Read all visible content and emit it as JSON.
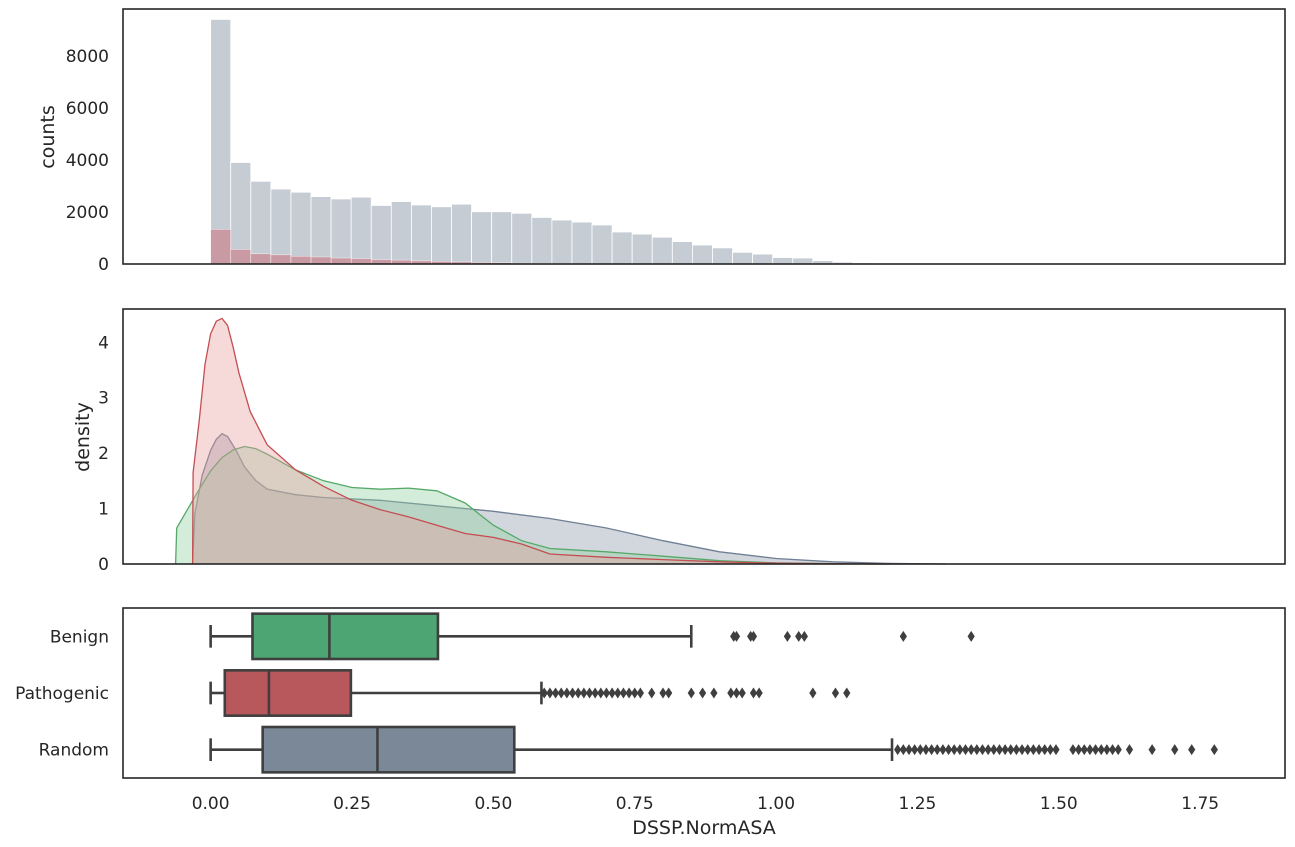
{
  "chart_data": [
    {
      "type": "bar",
      "panel": "histogram",
      "ylabel": "counts",
      "xlabel": "",
      "xlim": [
        -0.155,
        1.9
      ],
      "ylim": [
        0,
        9800
      ],
      "yticks": [
        "0",
        "2000",
        "4000",
        "6000",
        "8000"
      ],
      "bin_width": 0.0355,
      "x_start": 0.0,
      "series": [
        {
          "name": "",
          "color": "#c2c9d2",
          "values": [
            9400,
            3900,
            3180,
            2880,
            2760,
            2590,
            2500,
            2570,
            2250,
            2400,
            2270,
            2200,
            2300,
            2010,
            2010,
            1950,
            1790,
            1690,
            1610,
            1500,
            1230,
            1150,
            1030,
            860,
            730,
            620,
            450,
            380,
            250,
            230,
            130,
            70,
            40,
            20,
            10,
            5
          ]
        },
        {
          "name": "",
          "color": "#c98a93",
          "values": [
            1330,
            560,
            390,
            350,
            300,
            270,
            230,
            210,
            170,
            150,
            120,
            100,
            80,
            60,
            50,
            35,
            25,
            20,
            15,
            10,
            8,
            5
          ]
        }
      ]
    },
    {
      "type": "area",
      "panel": "density",
      "ylabel": "density",
      "xlabel": "",
      "xlim": [
        -0.155,
        1.9
      ],
      "ylim": [
        0,
        4.6
      ],
      "yticks": [
        "0",
        "1",
        "2",
        "3",
        "4"
      ],
      "series": [
        {
          "name": "",
          "category": "Random",
          "stroke": "#6f7f95",
          "fill": "#8996a8",
          "x": [
            -0.032,
            -0.028,
            -0.015,
            0.0,
            0.01,
            0.02,
            0.03,
            0.045,
            0.06,
            0.08,
            0.1,
            0.15,
            0.2,
            0.3,
            0.4,
            0.5,
            0.6,
            0.7,
            0.8,
            0.9,
            1.0,
            1.1,
            1.2,
            1.3
          ],
          "y": [
            0.0,
            0.9,
            1.6,
            2.05,
            2.25,
            2.35,
            2.3,
            2.05,
            1.75,
            1.5,
            1.35,
            1.25,
            1.2,
            1.15,
            1.05,
            0.95,
            0.82,
            0.65,
            0.42,
            0.22,
            0.1,
            0.04,
            0.01,
            0.0
          ]
        },
        {
          "name": "",
          "category": "Benign",
          "stroke": "#55a868",
          "fill": "#8fd09f",
          "x": [
            -0.062,
            -0.06,
            -0.04,
            -0.02,
            0.0,
            0.02,
            0.04,
            0.06,
            0.08,
            0.1,
            0.15,
            0.2,
            0.25,
            0.3,
            0.35,
            0.4,
            0.45,
            0.5,
            0.55,
            0.6,
            0.7,
            0.8,
            0.9,
            1.0,
            1.1,
            1.2
          ],
          "y": [
            0.0,
            0.65,
            1.0,
            1.35,
            1.68,
            1.92,
            2.06,
            2.12,
            2.08,
            1.98,
            1.7,
            1.5,
            1.38,
            1.35,
            1.37,
            1.32,
            1.1,
            0.7,
            0.42,
            0.28,
            0.22,
            0.14,
            0.06,
            0.02,
            0.005,
            0.0
          ]
        },
        {
          "name": "",
          "category": "Pathogenic",
          "stroke": "#c44e52",
          "fill": "#e79a9c",
          "x": [
            -0.032,
            -0.031,
            -0.02,
            -0.01,
            0.0,
            0.01,
            0.02,
            0.03,
            0.04,
            0.05,
            0.07,
            0.1,
            0.15,
            0.2,
            0.25,
            0.3,
            0.35,
            0.4,
            0.45,
            0.5,
            0.55,
            0.6,
            0.7,
            0.8,
            0.9,
            1.0,
            1.1,
            1.2
          ],
          "y": [
            0.0,
            1.65,
            2.6,
            3.6,
            4.15,
            4.38,
            4.43,
            4.3,
            3.9,
            3.45,
            2.75,
            2.15,
            1.7,
            1.4,
            1.15,
            0.98,
            0.85,
            0.7,
            0.55,
            0.48,
            0.36,
            0.18,
            0.12,
            0.08,
            0.04,
            0.015,
            0.005,
            0.0
          ]
        }
      ]
    },
    {
      "type": "box",
      "panel": "boxplot",
      "xlabel": "DSSP.NormASA",
      "xlim": [
        -0.155,
        1.9
      ],
      "xticks": [
        "0.00",
        "0.25",
        "0.50",
        "0.75",
        "1.00",
        "1.25",
        "1.50",
        "1.75"
      ],
      "categories": [
        "Benign",
        "Pathogenic",
        "Random"
      ],
      "boxes": [
        {
          "category": "Benign",
          "color": "#4ca572",
          "whisker_low": 0.0,
          "q1": 0.074,
          "median": 0.21,
          "q3": 0.402,
          "whisker_high": 0.85,
          "outliers": [
            0.925,
            0.93,
            0.955,
            0.96,
            1.02,
            1.04,
            1.05,
            1.225,
            1.345
          ]
        },
        {
          "category": "Pathogenic",
          "color": "#b8575c",
          "whisker_low": 0.0,
          "q1": 0.025,
          "median": 0.103,
          "q3": 0.248,
          "whisker_high": 0.585,
          "outliers": [
            0.59,
            0.6,
            0.61,
            0.62,
            0.63,
            0.64,
            0.65,
            0.66,
            0.67,
            0.68,
            0.69,
            0.7,
            0.71,
            0.72,
            0.73,
            0.74,
            0.75,
            0.76,
            0.78,
            0.8,
            0.81,
            0.85,
            0.87,
            0.89,
            0.92,
            0.93,
            0.94,
            0.96,
            0.97,
            1.065,
            1.105,
            1.125
          ]
        },
        {
          "category": "Random",
          "color": "#7b8898",
          "whisker_low": 0.0,
          "q1": 0.092,
          "median": 0.295,
          "q3": 0.537,
          "whisker_high": 1.205,
          "outliers": [
            1.215,
            1.225,
            1.235,
            1.245,
            1.255,
            1.265,
            1.275,
            1.285,
            1.295,
            1.305,
            1.315,
            1.325,
            1.335,
            1.345,
            1.355,
            1.365,
            1.375,
            1.385,
            1.395,
            1.405,
            1.415,
            1.425,
            1.435,
            1.445,
            1.455,
            1.465,
            1.475,
            1.485,
            1.495,
            1.525,
            1.535,
            1.545,
            1.555,
            1.565,
            1.575,
            1.585,
            1.595,
            1.605,
            1.625,
            1.665,
            1.705,
            1.735,
            1.775
          ]
        }
      ]
    }
  ]
}
